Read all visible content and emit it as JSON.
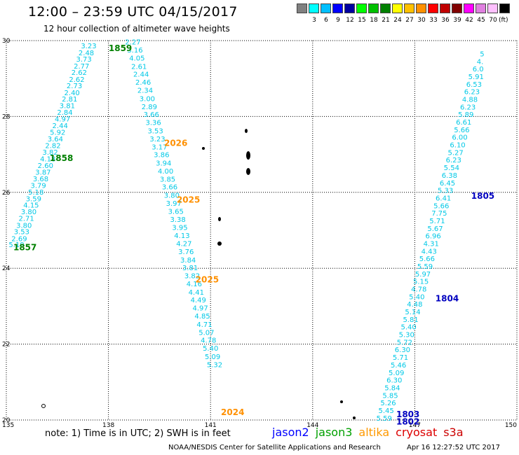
{
  "header": {
    "title": "12:00 – 23:59 UTC 04/15/2017",
    "subtitle": "12 hour collection of altimeter wave heights"
  },
  "colorbar": {
    "unit": "(ft)",
    "bins": [
      {
        "color": "#808080",
        "label": ""
      },
      {
        "color": "#00ffff",
        "label": "3"
      },
      {
        "color": "#00bfff",
        "label": "6"
      },
      {
        "color": "#0000ff",
        "label": "9"
      },
      {
        "color": "#0000a0",
        "label": "12"
      },
      {
        "color": "#00ff00",
        "label": "15"
      },
      {
        "color": "#00c000",
        "label": "18"
      },
      {
        "color": "#008000",
        "label": "21"
      },
      {
        "color": "#ffff00",
        "label": "24"
      },
      {
        "color": "#ffc000",
        "label": "27"
      },
      {
        "color": "#ff9000",
        "label": "30"
      },
      {
        "color": "#ff0000",
        "label": "33"
      },
      {
        "color": "#c00000",
        "label": "36"
      },
      {
        "color": "#800000",
        "label": "39"
      },
      {
        "color": "#ff00ff",
        "label": "42"
      },
      {
        "color": "#e080e0",
        "label": "45"
      },
      {
        "color": "#ffc0ff",
        "label": "70"
      },
      {
        "color": "#000000",
        "label": ""
      }
    ]
  },
  "chart_data": {
    "type": "scatter",
    "title": "12:00 – 23:59 UTC 04/15/2017",
    "subtitle": "12 hour collection of altimeter wave heights",
    "xlabel": "",
    "ylabel": "",
    "xlim": [
      135,
      150
    ],
    "ylim": [
      20,
      30
    ],
    "xticks": [
      "135",
      "138",
      "141",
      "144",
      "147",
      "150"
    ],
    "yticks": [
      "20",
      "22",
      "24",
      "26",
      "28",
      "30"
    ],
    "grid": true,
    "series": [
      {
        "name": "jason3",
        "color_hex": "#00c8e6",
        "points": [
          [
            135.3,
            24.62,
            "5.19"
          ],
          [
            135.38,
            24.78,
            "2.69"
          ],
          [
            135.45,
            24.96,
            "3.53"
          ],
          [
            135.52,
            25.13,
            "3.80"
          ],
          [
            135.59,
            25.31,
            "2.71"
          ],
          [
            135.66,
            25.49,
            "3.80"
          ],
          [
            135.73,
            25.66,
            "4.15"
          ],
          [
            135.8,
            25.83,
            "3.59"
          ],
          [
            135.87,
            26.01,
            "5.18"
          ],
          [
            135.94,
            26.18,
            "3.79"
          ],
          [
            136.01,
            26.36,
            "3.68"
          ],
          [
            136.08,
            26.53,
            "3.87"
          ],
          [
            136.15,
            26.71,
            "2.60"
          ],
          [
            136.22,
            26.88,
            "4.18"
          ],
          [
            136.29,
            27.06,
            "3.82"
          ],
          [
            136.37,
            27.23,
            "2.82"
          ],
          [
            136.44,
            27.41,
            "3.64"
          ],
          [
            136.51,
            27.58,
            "5.92"
          ],
          [
            136.58,
            27.76,
            "2.44"
          ],
          [
            136.65,
            27.93,
            "4.97"
          ],
          [
            136.72,
            28.11,
            "2.84"
          ],
          [
            136.79,
            28.28,
            "3.81"
          ],
          [
            136.86,
            28.46,
            "2.81"
          ],
          [
            136.93,
            28.63,
            "2.40"
          ],
          [
            137.0,
            28.81,
            "2.73"
          ],
          [
            137.07,
            28.98,
            "2.62"
          ],
          [
            137.14,
            29.16,
            "2.62"
          ],
          [
            137.21,
            29.33,
            "2.77"
          ],
          [
            137.28,
            29.51,
            "3.73"
          ],
          [
            137.35,
            29.68,
            "2.48"
          ],
          [
            137.42,
            29.86,
            "3.23"
          ],
          [
            138.72,
            29.96,
            "2.27"
          ],
          [
            138.78,
            29.75,
            "3.16"
          ],
          [
            138.84,
            29.54,
            "4.05"
          ],
          [
            138.9,
            29.32,
            "2.61"
          ],
          [
            138.96,
            29.11,
            "2.44"
          ],
          [
            139.02,
            28.9,
            "2.46"
          ],
          [
            139.08,
            28.69,
            "2.34"
          ],
          [
            139.14,
            28.47,
            "3.00"
          ],
          [
            139.2,
            28.26,
            "2.89"
          ],
          [
            139.26,
            28.05,
            "3.66"
          ],
          [
            139.32,
            27.84,
            "3.36"
          ],
          [
            139.38,
            27.62,
            "3.53"
          ],
          [
            139.44,
            27.41,
            "3.23"
          ],
          [
            139.5,
            27.2,
            "3.17"
          ],
          [
            139.56,
            26.99,
            "3.86"
          ],
          [
            139.62,
            26.77,
            "3.94"
          ],
          [
            139.68,
            26.56,
            "4.00"
          ],
          [
            139.74,
            26.35,
            "3.85"
          ],
          [
            139.8,
            26.14,
            "3.66"
          ],
          [
            139.86,
            25.92,
            "3.80"
          ],
          [
            139.92,
            25.71,
            "3.97"
          ],
          [
            139.98,
            25.5,
            "3.65"
          ],
          [
            140.04,
            25.29,
            "3.38"
          ],
          [
            140.1,
            25.07,
            "3.95"
          ],
          [
            140.16,
            24.86,
            "4.13"
          ],
          [
            140.22,
            24.65,
            "4.27"
          ],
          [
            140.28,
            24.44,
            "3.76"
          ],
          [
            140.34,
            24.22,
            "3.84"
          ],
          [
            140.4,
            24.01,
            "3.81"
          ],
          [
            140.46,
            23.8,
            "3.82"
          ],
          [
            140.52,
            23.59,
            "4.16"
          ],
          [
            140.58,
            23.37,
            "4.41"
          ],
          [
            140.64,
            23.16,
            "4.49"
          ],
          [
            140.7,
            22.95,
            "4.97"
          ],
          [
            140.76,
            22.74,
            "4.85"
          ],
          [
            140.82,
            22.52,
            "4.71"
          ],
          [
            140.88,
            22.31,
            "5.07"
          ],
          [
            140.94,
            22.1,
            "4.78"
          ],
          [
            141.0,
            21.89,
            "5.40"
          ],
          [
            141.06,
            21.67,
            "5.09"
          ],
          [
            141.12,
            21.46,
            "5.32"
          ],
          [
            146.1,
            20.05,
            "5.59"
          ],
          [
            146.16,
            20.25,
            "5.45"
          ],
          [
            146.22,
            20.45,
            "5.26"
          ],
          [
            146.28,
            20.65,
            "5.85"
          ],
          [
            146.34,
            20.85,
            "5.84"
          ],
          [
            146.4,
            21.05,
            "6.30"
          ],
          [
            146.46,
            21.25,
            "5.09"
          ],
          [
            146.52,
            21.45,
            "5.46"
          ],
          [
            146.58,
            21.65,
            "5.71"
          ],
          [
            146.64,
            21.85,
            "6.30"
          ],
          [
            146.7,
            22.05,
            "5.72"
          ],
          [
            146.76,
            22.25,
            "5.30"
          ],
          [
            146.82,
            22.45,
            "5.40"
          ],
          [
            146.88,
            22.65,
            "5.81"
          ],
          [
            146.94,
            22.85,
            "5.14"
          ],
          [
            147.0,
            23.05,
            "4.48"
          ],
          [
            147.06,
            23.25,
            "5.40"
          ],
          [
            147.12,
            23.45,
            "4.78"
          ],
          [
            147.18,
            23.65,
            "5.15"
          ],
          [
            147.24,
            23.85,
            "5.97"
          ],
          [
            147.3,
            24.05,
            "5.59"
          ],
          [
            147.36,
            24.25,
            "5.66"
          ],
          [
            147.42,
            24.45,
            "4.43"
          ],
          [
            147.48,
            24.65,
            "4.31"
          ],
          [
            147.54,
            24.85,
            "6.96"
          ],
          [
            147.6,
            25.05,
            "5.67"
          ],
          [
            147.66,
            25.25,
            "5.71"
          ],
          [
            147.72,
            25.45,
            "7.75"
          ],
          [
            147.78,
            25.65,
            "5.66"
          ],
          [
            147.84,
            25.85,
            "6.41"
          ],
          [
            147.9,
            26.05,
            "5.33"
          ],
          [
            147.96,
            26.25,
            "6.45"
          ],
          [
            148.02,
            26.45,
            "6.38"
          ],
          [
            148.08,
            26.65,
            "5.54"
          ],
          [
            148.14,
            26.85,
            "6.23"
          ],
          [
            148.2,
            27.05,
            "5.27"
          ],
          [
            148.26,
            27.25,
            "6.10"
          ],
          [
            148.32,
            27.45,
            "6.00"
          ],
          [
            148.38,
            27.65,
            "5.66"
          ],
          [
            148.44,
            27.85,
            "6.61"
          ],
          [
            148.5,
            28.05,
            "5.89"
          ],
          [
            148.56,
            28.25,
            "6.23"
          ],
          [
            148.62,
            28.45,
            "4.88"
          ],
          [
            148.68,
            28.65,
            "6.23"
          ],
          [
            148.74,
            28.85,
            "6.53"
          ],
          [
            148.8,
            29.05,
            "5.91"
          ],
          [
            148.86,
            29.25,
            "6.0"
          ],
          [
            148.92,
            29.45,
            "4."
          ],
          [
            148.98,
            29.65,
            "5"
          ]
        ]
      }
    ],
    "track_times": [
      {
        "text": "1857",
        "x": 135.55,
        "y": 24.55,
        "color_hex": "#008000"
      },
      {
        "text": "1858",
        "x": 136.62,
        "y": 26.9,
        "color_hex": "#008000"
      },
      {
        "text": "1859",
        "x": 138.35,
        "y": 29.8,
        "color_hex": "#008000"
      },
      {
        "text": "2026",
        "x": 139.98,
        "y": 27.3,
        "color_hex": "#ff9000"
      },
      {
        "text": "2025",
        "x": 140.35,
        "y": 25.8,
        "color_hex": "#ff9000"
      },
      {
        "text": "2025",
        "x": 140.9,
        "y": 23.7,
        "color_hex": "#ff9000"
      },
      {
        "text": "2024",
        "x": 141.65,
        "y": 20.2,
        "color_hex": "#ff9000"
      },
      {
        "text": "1803",
        "x": 146.8,
        "y": 20.15,
        "color_hex": "#0000c0"
      },
      {
        "text": "1802",
        "x": 146.8,
        "y": 19.95,
        "color_hex": "#0000c0"
      },
      {
        "text": "1804",
        "x": 147.95,
        "y": 23.2,
        "color_hex": "#0000c0"
      },
      {
        "text": "1805",
        "x": 149.0,
        "y": 25.9,
        "color_hex": "#0000c0"
      }
    ]
  },
  "footer": {
    "note": "note:  1) Time is in UTC;  2) SWH is in feet",
    "legend": [
      {
        "name": "jason2",
        "color": "#0000ff"
      },
      {
        "name": "jason3",
        "color": "#00a000"
      },
      {
        "name": "altika",
        "color": "#ff9900"
      },
      {
        "name": "cryosat",
        "color": "#dd0000"
      },
      {
        "name": "s3a",
        "color": "#cc0000"
      }
    ],
    "credit": "NOAA/NESDIS Center for Satellite Applications and Research",
    "timestamp": "Apr 16 12:27:52 UTC 2017"
  }
}
